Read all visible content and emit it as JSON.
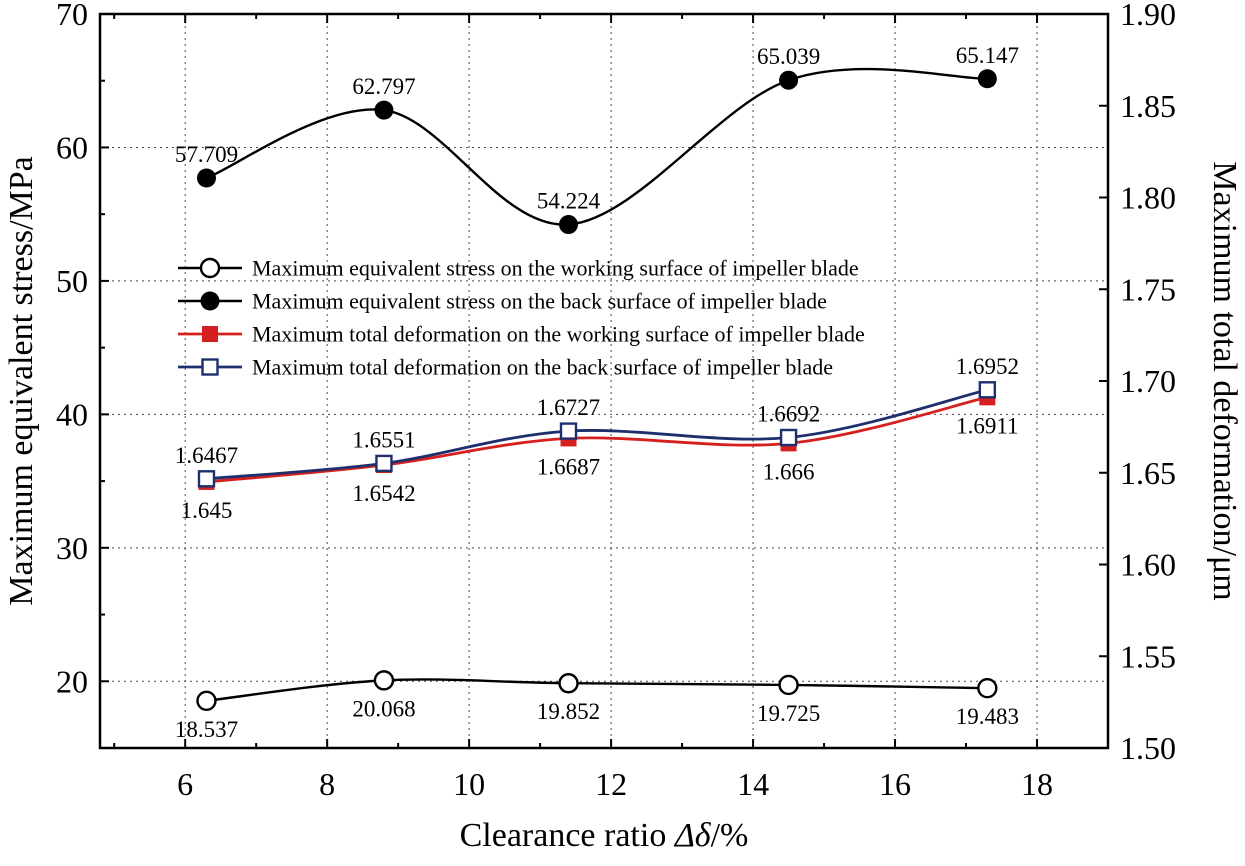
{
  "chart_data": {
    "type": "line",
    "title": "",
    "xlabel": {
      "prefix": "Clearance ratio ",
      "symbol": "Δδ",
      "suffix": "/%"
    },
    "ylabel_left": "Maximum equivalent stress/MPa",
    "ylabel_right": "Maximum total deformation/μm",
    "x": [
      6.3,
      8.8,
      11.4,
      14.5,
      17.3
    ],
    "x_ticks": [
      6,
      8,
      10,
      12,
      14,
      16,
      18
    ],
    "x_minor_ticks": [
      5,
      7,
      9,
      11,
      13,
      15,
      17,
      19
    ],
    "xlim": [
      4.8,
      19.0
    ],
    "left_ticks": [
      20,
      30,
      40,
      50,
      60,
      70
    ],
    "left_minor_ticks": [
      25,
      35,
      45,
      55,
      65
    ],
    "left_lim": [
      15,
      70
    ],
    "right_ticks": [
      1.5,
      1.55,
      1.6,
      1.65,
      1.7,
      1.75,
      1.8,
      1.85,
      1.9
    ],
    "right_tick_labels": [
      "1.50",
      "1.55",
      "1.60",
      "1.65",
      "1.70",
      "1.75",
      "1.80",
      "1.85",
      "1.90"
    ],
    "right_lim": [
      1.5,
      1.9
    ],
    "grid": true,
    "grid_color": "#4a4a4a",
    "legend_position": "inside upper-left",
    "series": [
      {
        "name": "Maximum equivalent stress on the working surface of impeller blade",
        "axis": "left",
        "color": "#000000",
        "marker": "circle-open",
        "line": "spline",
        "values": [
          18.537,
          20.068,
          19.852,
          19.725,
          19.483
        ],
        "label_side": "below"
      },
      {
        "name": "Maximum equivalent stress on the back surface of impeller blade",
        "axis": "left",
        "color": "#000000",
        "marker": "circle-filled",
        "line": "spline",
        "values": [
          57.709,
          62.797,
          54.224,
          65.039,
          65.147
        ],
        "label_side": "above"
      },
      {
        "name": "Maximum total deformation on the working surface of impeller blade",
        "axis": "right",
        "color": "#d6201f",
        "marker": "square-filled",
        "line": "spline",
        "values": [
          1.645,
          1.6542,
          1.6687,
          1.666,
          1.6911
        ],
        "label_side": "below"
      },
      {
        "name": "Maximum total deformation on the back surface of impeller blade",
        "axis": "right",
        "color": "#1d2f6d",
        "marker": "square-open",
        "line": "spline",
        "values": [
          1.6467,
          1.6551,
          1.6727,
          1.6692,
          1.6952
        ],
        "label_side": "above"
      }
    ]
  }
}
